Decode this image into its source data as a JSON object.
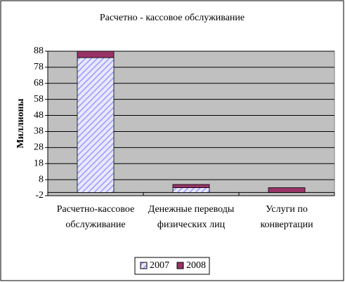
{
  "chart_data": {
    "type": "stacked_bar",
    "title": "Расчетно - кассовое обслуживание",
    "y_label": "Миллионы",
    "categories": [
      "Расчетно-кассовое обслуживание",
      "Денежные переводы физических лиц",
      "Услуги по конвертации"
    ],
    "series": [
      {
        "name": "2007",
        "color": "#9999ff",
        "values": [
          84,
          3,
          0
        ]
      },
      {
        "name": "2008",
        "color": "#993366",
        "values": [
          4,
          2,
          3
        ]
      }
    ],
    "ylim": [
      -2,
      88
    ],
    "yticks": [
      -2,
      8,
      18,
      28,
      38,
      48,
      58,
      68,
      78,
      88
    ],
    "grid": true,
    "legend": "bottom"
  }
}
